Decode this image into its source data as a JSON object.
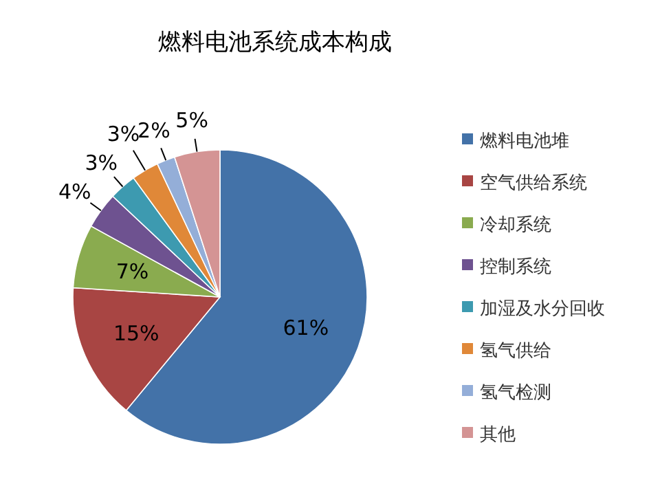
{
  "chart_data": {
    "type": "pie",
    "title": "燃料电池系统成本构成",
    "categories": [
      "燃料电池堆",
      "空气供给系统",
      "冷却系统",
      "控制系统",
      "加湿及水分回收",
      "氢气供给",
      "氢气检测",
      "其他"
    ],
    "values": [
      61,
      15,
      7,
      4,
      3,
      3,
      2,
      5
    ],
    "colors": [
      "#4372a8",
      "#a84543",
      "#8aab4f",
      "#6e5290",
      "#3d9ab0",
      "#e08838",
      "#94aed8",
      "#d49494"
    ],
    "value_labels": [
      "61%",
      "15%",
      "7%",
      "4%",
      "3%",
      "3%",
      "2%",
      "5%"
    ],
    "legend": "right"
  }
}
